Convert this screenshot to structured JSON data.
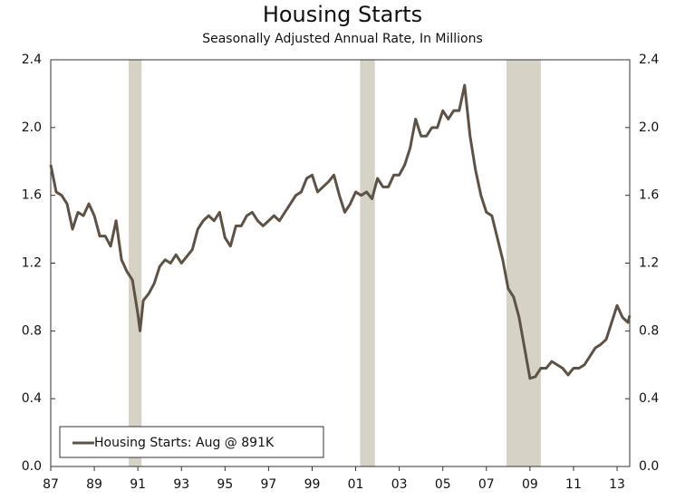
{
  "chart_data": {
    "type": "line",
    "title": "Housing Starts",
    "subtitle": "Seasonally Adjusted Annual Rate, In Millions",
    "x": [
      1987.0,
      1987.25,
      1987.5,
      1987.75,
      1988.0,
      1988.25,
      1988.5,
      1988.75,
      1989.0,
      1989.25,
      1989.5,
      1989.75,
      1990.0,
      1990.25,
      1990.5,
      1990.75,
      1991.0,
      1991.1,
      1991.25,
      1991.5,
      1991.75,
      1992.0,
      1992.25,
      1992.5,
      1992.75,
      1993.0,
      1993.25,
      1993.5,
      1993.75,
      1994.0,
      1994.25,
      1994.5,
      1994.75,
      1995.0,
      1995.25,
      1995.5,
      1995.75,
      1996.0,
      1996.25,
      1996.5,
      1996.75,
      1997.0,
      1997.25,
      1997.5,
      1997.75,
      1998.0,
      1998.25,
      1998.5,
      1998.75,
      1999.0,
      1999.25,
      1999.5,
      1999.75,
      2000.0,
      2000.25,
      2000.5,
      2000.75,
      2001.0,
      2001.25,
      2001.5,
      2001.75,
      2002.0,
      2002.25,
      2002.5,
      2002.75,
      2003.0,
      2003.25,
      2003.5,
      2003.75,
      2004.0,
      2004.25,
      2004.5,
      2004.75,
      2005.0,
      2005.25,
      2005.5,
      2005.75,
      2006.0,
      2006.25,
      2006.5,
      2006.75,
      2007.0,
      2007.25,
      2007.5,
      2007.75,
      2008.0,
      2008.25,
      2008.5,
      2008.75,
      2009.0,
      2009.25,
      2009.5,
      2009.75,
      2010.0,
      2010.25,
      2010.5,
      2010.75,
      2011.0,
      2011.25,
      2011.5,
      2011.75,
      2012.0,
      2012.25,
      2012.5,
      2012.75,
      2013.0,
      2013.25,
      2013.5,
      2013.58
    ],
    "series": [
      {
        "name": "Housing Starts: Aug @ 891K",
        "color": "#5e5246",
        "values": [
          1.78,
          1.62,
          1.6,
          1.55,
          1.4,
          1.5,
          1.48,
          1.55,
          1.48,
          1.36,
          1.36,
          1.3,
          1.45,
          1.22,
          1.15,
          1.1,
          0.9,
          0.8,
          0.98,
          1.02,
          1.08,
          1.18,
          1.22,
          1.2,
          1.25,
          1.2,
          1.24,
          1.28,
          1.4,
          1.45,
          1.48,
          1.45,
          1.5,
          1.35,
          1.3,
          1.42,
          1.42,
          1.48,
          1.5,
          1.45,
          1.42,
          1.45,
          1.48,
          1.45,
          1.5,
          1.55,
          1.6,
          1.62,
          1.7,
          1.72,
          1.62,
          1.65,
          1.68,
          1.72,
          1.6,
          1.5,
          1.55,
          1.62,
          1.6,
          1.62,
          1.58,
          1.7,
          1.65,
          1.65,
          1.72,
          1.72,
          1.78,
          1.88,
          2.05,
          1.95,
          1.95,
          2.0,
          2.0,
          2.1,
          2.05,
          2.1,
          2.1,
          2.25,
          1.95,
          1.75,
          1.6,
          1.5,
          1.48,
          1.35,
          1.22,
          1.05,
          1.0,
          0.88,
          0.7,
          0.52,
          0.53,
          0.58,
          0.58,
          0.62,
          0.6,
          0.58,
          0.54,
          0.58,
          0.58,
          0.6,
          0.65,
          0.7,
          0.72,
          0.75,
          0.85,
          0.95,
          0.88,
          0.85,
          0.891
        ]
      }
    ],
    "recessions": [
      [
        1990.58,
        1991.17
      ],
      [
        2001.2,
        2001.88
      ],
      [
        2007.92,
        2009.5
      ]
    ],
    "recession_color": "#d6d2c6",
    "xlim": [
      1987,
      2013.58
    ],
    "xticks": [
      {
        "value": 1987,
        "label": "87"
      },
      {
        "value": 1989,
        "label": "89"
      },
      {
        "value": 1991,
        "label": "91"
      },
      {
        "value": 1993,
        "label": "93"
      },
      {
        "value": 1995,
        "label": "95"
      },
      {
        "value": 1997,
        "label": "97"
      },
      {
        "value": 1999,
        "label": "99"
      },
      {
        "value": 2001,
        "label": "01"
      },
      {
        "value": 2003,
        "label": "03"
      },
      {
        "value": 2005,
        "label": "05"
      },
      {
        "value": 2007,
        "label": "07"
      },
      {
        "value": 2009,
        "label": "09"
      },
      {
        "value": 2011,
        "label": "11"
      },
      {
        "value": 2013,
        "label": "13"
      }
    ],
    "ylim": [
      0,
      2.4
    ],
    "yticks": [
      {
        "value": 0,
        "label": "0.0"
      },
      {
        "value": 0.4,
        "label": "0.4"
      },
      {
        "value": 0.8,
        "label": "0.8"
      },
      {
        "value": 1.2,
        "label": "1.2"
      },
      {
        "value": 1.6,
        "label": "1.6"
      },
      {
        "value": 2.0,
        "label": "2.0"
      },
      {
        "value": 2.4,
        "label": "2.4"
      }
    ],
    "y2lim": [
      0,
      2.4
    ],
    "y2ticks": [
      {
        "value": 0,
        "label": "0.0"
      },
      {
        "value": 0.4,
        "label": "0.4"
      },
      {
        "value": 0.8,
        "label": "0.8"
      },
      {
        "value": 1.2,
        "label": "1.2"
      },
      {
        "value": 1.6,
        "label": "1.6"
      },
      {
        "value": 2.0,
        "label": "2.0"
      },
      {
        "value": 2.4,
        "label": "2.4"
      }
    ],
    "legend": "lower left"
  }
}
